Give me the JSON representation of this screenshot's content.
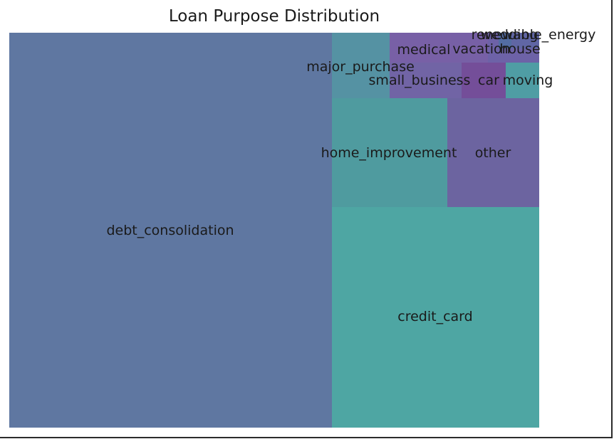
{
  "chart_data": {
    "type": "treemap",
    "title": "Loan Purpose Distribution",
    "items": [
      {
        "label": "debt_consolidation",
        "value": 48.0,
        "color": "#5f77a1"
      },
      {
        "label": "credit_card",
        "value": 20.3,
        "color": "#4ea6a3"
      },
      {
        "label": "home_improvement",
        "value": 7.6,
        "color": "#4f9b9f"
      },
      {
        "label": "other",
        "value": 4.6,
        "color": "#6c64a0"
      },
      {
        "label": "major_purchase",
        "value": 2.5,
        "color": "#5592a3"
      },
      {
        "label": "small_business",
        "value": 2.1,
        "color": "#7164a5"
      },
      {
        "label": "medical",
        "value": 1.5,
        "color": "#7860a6"
      },
      {
        "label": "car",
        "value": 1.1,
        "color": "#744e99"
      },
      {
        "label": "moving",
        "value": 0.8,
        "color": "#4f9da4"
      },
      {
        "label": "vacation",
        "value": 0.9,
        "color": "#7760a6"
      },
      {
        "label": "house",
        "value": 0.6,
        "color": "#6d62a7"
      },
      {
        "label": "wedding",
        "value": 0.3,
        "color": "#6066a4"
      },
      {
        "label": "renewable_energy",
        "value": 0.2,
        "color": "#536da3"
      }
    ]
  }
}
